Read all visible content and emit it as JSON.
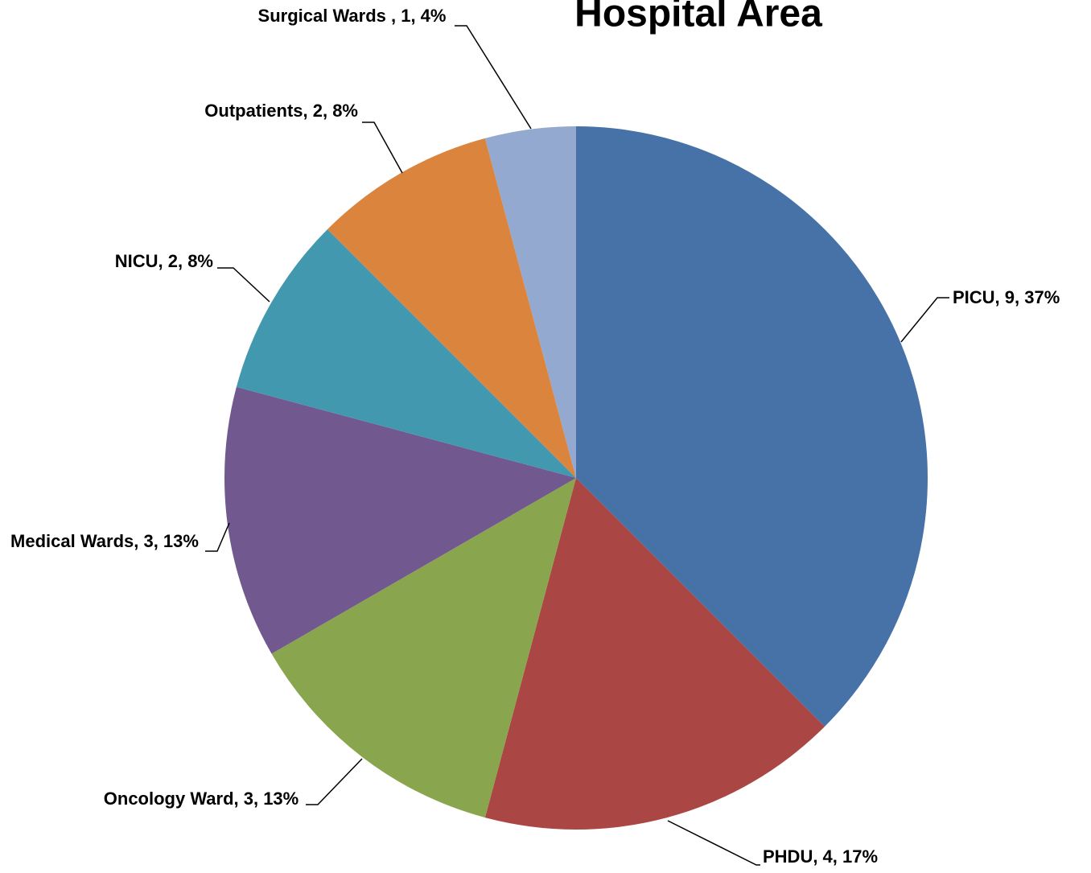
{
  "chart_data": {
    "type": "pie",
    "title": "Hospital Area",
    "categories": [
      "PICU",
      "PHDU",
      "Oncology Ward",
      "Medical Wards",
      "NICU",
      "Outpatients",
      "Surgical Wards "
    ],
    "values": [
      9,
      4,
      3,
      3,
      2,
      2,
      1
    ],
    "value_labels": [
      "PICU, 9, 37%",
      "PHDU, 4, 17%",
      "Oncology Ward, 3, 13%",
      "Medical Wards, 3, 13%",
      "NICU, 2, 8%",
      "Outpatients, 2, 8%",
      "Surgical Wards , 1, 4%"
    ],
    "colors": [
      "#4672a8",
      "#aa4644",
      "#89a54e",
      "#71588f",
      "#4198af",
      "#db843d",
      "#93a9cf"
    ]
  }
}
